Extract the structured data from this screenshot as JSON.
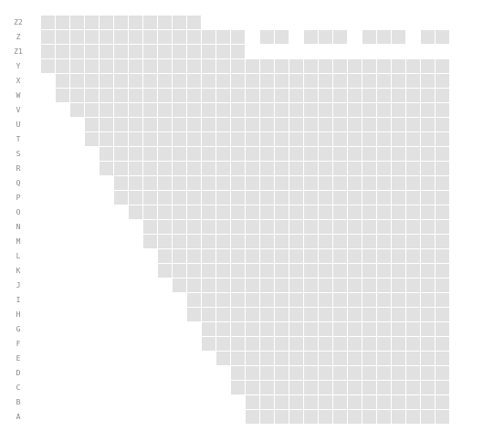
{
  "seat_map": {
    "seat_color": "#e1e1e1",
    "label_color": "#888888",
    "background": "#ffffff",
    "column_count": 29,
    "rows": [
      {
        "label": "Z2",
        "seats": "1-11"
      },
      {
        "label": "Z",
        "seats": "1-14,16-17,19-21,23-25,27-28"
      },
      {
        "label": "Z1",
        "seats": "1-14"
      },
      {
        "label": "Y",
        "seats": "1-28"
      },
      {
        "label": "X",
        "seats": "2-28"
      },
      {
        "label": "W",
        "seats": "2-28"
      },
      {
        "label": "V",
        "seats": "3-28"
      },
      {
        "label": "U",
        "seats": "4-28"
      },
      {
        "label": "T",
        "seats": "4-28"
      },
      {
        "label": "S",
        "seats": "5-28"
      },
      {
        "label": "R",
        "seats": "5-28"
      },
      {
        "label": "Q",
        "seats": "6-28"
      },
      {
        "label": "P",
        "seats": "6-28"
      },
      {
        "label": "O",
        "seats": "7-28"
      },
      {
        "label": "N",
        "seats": "8-28"
      },
      {
        "label": "M",
        "seats": "8-28"
      },
      {
        "label": "L",
        "seats": "9-28"
      },
      {
        "label": "K",
        "seats": "9-28"
      },
      {
        "label": "J",
        "seats": "10-28"
      },
      {
        "label": "I",
        "seats": "11-28"
      },
      {
        "label": "H",
        "seats": "11-28"
      },
      {
        "label": "G",
        "seats": "12-28"
      },
      {
        "label": "F",
        "seats": "12-28"
      },
      {
        "label": "E",
        "seats": "13-28"
      },
      {
        "label": "D",
        "seats": "14-28"
      },
      {
        "label": "C",
        "seats": "14-28"
      },
      {
        "label": "B",
        "seats": "15-28"
      },
      {
        "label": "A",
        "seats": "15-28"
      }
    ]
  }
}
